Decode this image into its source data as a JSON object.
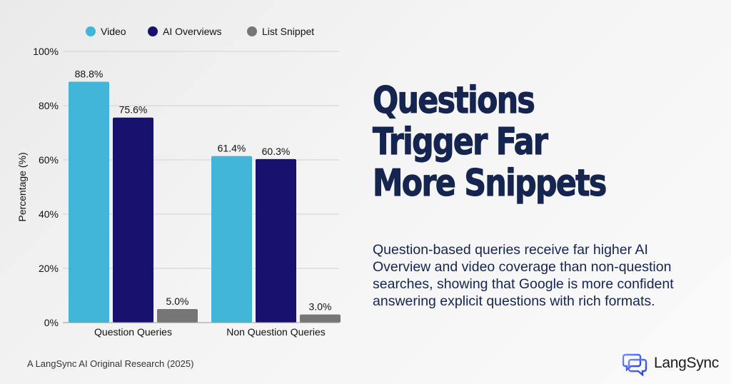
{
  "chart_data": {
    "type": "bar",
    "categories": [
      "Question Queries",
      "Non Question Queries"
    ],
    "series": [
      {
        "name": "Video",
        "values": [
          88.8,
          61.4
        ],
        "color": "#41b6d8"
      },
      {
        "name": "AI Overviews",
        "values": [
          75.6,
          60.3
        ],
        "color": "#17126e"
      },
      {
        "name": "List Snippet",
        "values": [
          5.0,
          3.0
        ],
        "color": "#767676"
      }
    ],
    "value_labels": [
      [
        "88.8%",
        "61.4%"
      ],
      [
        "75.6%",
        "60.3%"
      ],
      [
        "5.0%",
        "3.0%"
      ]
    ],
    "ylabel": "Percentage (%)",
    "xlabel": "",
    "ylim": [
      0,
      100
    ],
    "yticks": [
      0,
      20,
      40,
      60,
      80,
      100
    ],
    "ytick_labels": [
      "0%",
      "20%",
      "40%",
      "60%",
      "80%",
      "100%"
    ],
    "grid": true,
    "legend": "top"
  },
  "headline": {
    "line1": "Questions",
    "line2": "Trigger Far",
    "line3": "More Snippets"
  },
  "description": "Question-based queries receive far higher AI Overview and video coverage than non-question searches, showing that Google is more confident answering explicit questions with rich formats.",
  "footer": "A LangSync AI Original Research (2025)",
  "brand": {
    "name": "LangSync",
    "logo_icon": "chat-bubbles-icon",
    "logo_color": "#3b5bdb"
  }
}
